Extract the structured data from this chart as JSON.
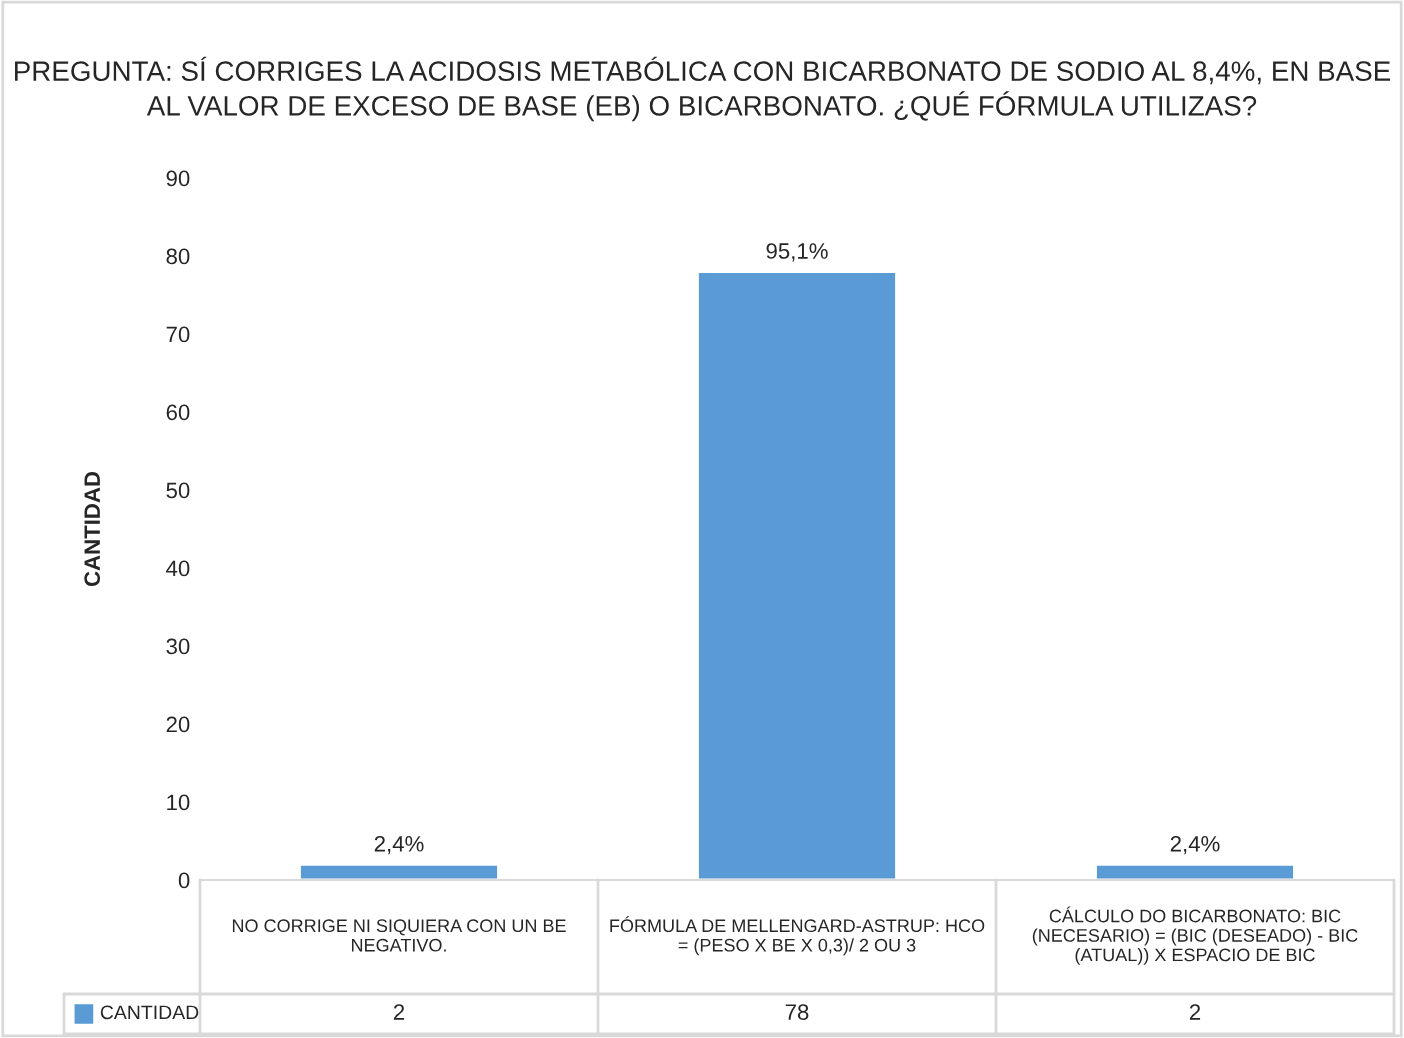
{
  "chart_data": {
    "type": "bar",
    "title": "PREGUNTA: SÍ CORRIGES LA ACIDOSIS METABÓLICA CON BICARBONATO DE SODIO AL 8,4%, EN BASE AL VALOR DE EXCESO DE BASE (EB) O BICARBONATO. ¿QUÉ FÓRMULA UTILIZAS?",
    "ylabel": "CANTIDAD",
    "categories": [
      "NO CORRIGE NI SIQUIERA CON UN BE NEGATIVO.",
      "FÓRMULA DE MELLENGARD-ASTRUP: HCO = (PESO X BE X 0,3)/ 2 OU 3",
      "CÁLCULO DO BICARBONATO: BIC (NECESARIO) = (BIC (DESEADO) - BIC (ATUAL)) X ESPACIO DE BIC"
    ],
    "series": [
      {
        "name": "CANTIDAD",
        "color": "#5b9bd5",
        "values": [
          2,
          78,
          2
        ]
      }
    ],
    "annotations": [
      {
        "text": "2,4%",
        "x": "NO CORRIGE NI SIQUIERA CON UN BE NEGATIVO.",
        "y": 2
      },
      {
        "text": "95,1%",
        "x": "FÓRMULA DE MELLENGARD-ASTRUP: HCO = (PESO X BE X 0,3)/ 2 OU 3",
        "y": 78
      },
      {
        "text": "2,4%",
        "x": "CÁLCULO DO BICARBONATO: BIC (NECESARIO) = (BIC (DESEADO) - BIC (ATUAL)) X ESPACIO DE BIC",
        "y": 2
      }
    ],
    "data_labels": true,
    "ylim": [
      0,
      90
    ],
    "yticks": [
      0,
      10,
      20,
      30,
      40,
      50,
      60,
      70,
      80,
      90
    ],
    "grid": false,
    "legend": "bottom"
  }
}
